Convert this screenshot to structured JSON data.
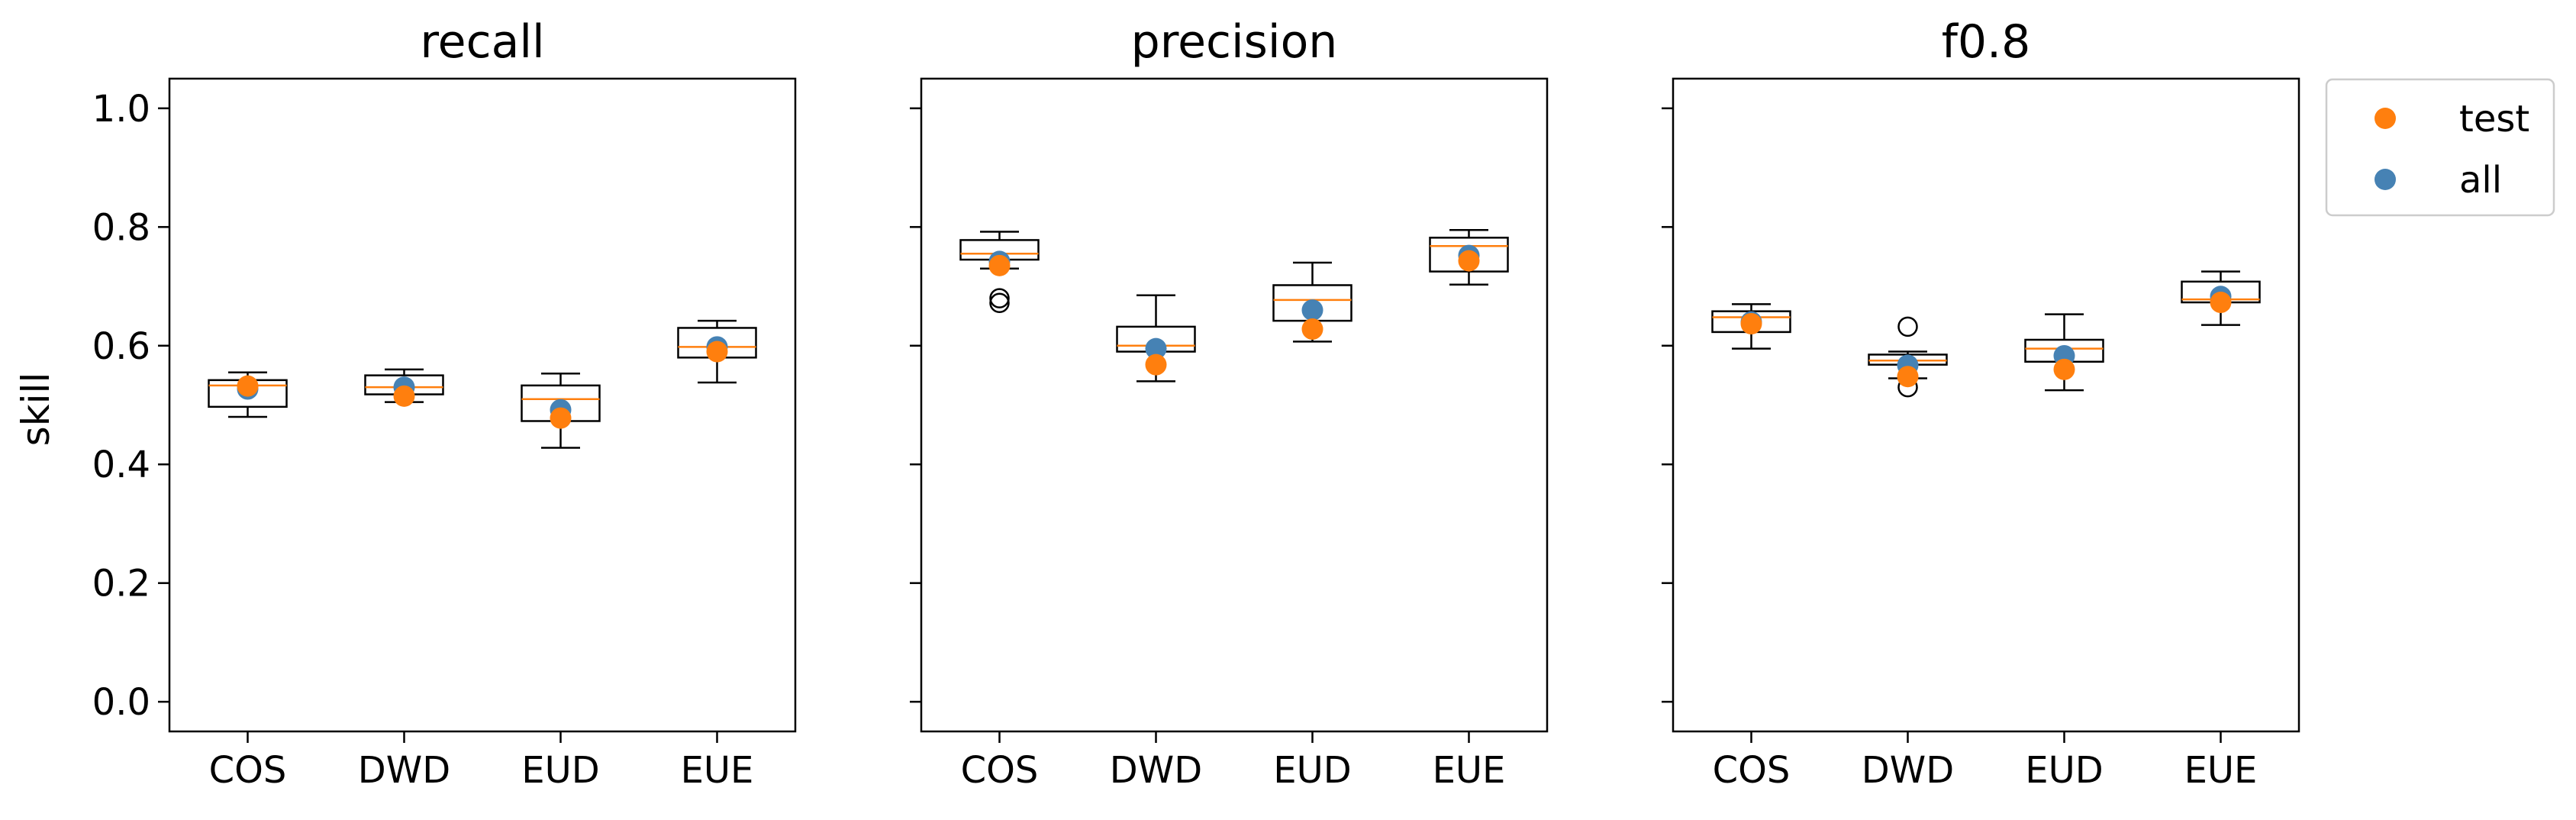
{
  "chart_data": {
    "type": "boxplot",
    "ylabel": "skill",
    "ylim": [
      -0.05,
      1.05
    ],
    "yticks": [
      0.0,
      0.2,
      0.4,
      0.6,
      0.8,
      1.0
    ],
    "ytick_labels": [
      "0.0",
      "0.2",
      "0.4",
      "0.6",
      "0.8",
      "1.0"
    ],
    "categories": [
      "COS",
      "DWD",
      "EUD",
      "EUE"
    ],
    "legend": {
      "placement": "outside-top-right",
      "entries": [
        {
          "label": "test",
          "color": "#ff7f0e"
        },
        {
          "label": "all",
          "color": "#4682b4"
        }
      ]
    },
    "colors": {
      "median": "#ff7f0e",
      "test": "#ff7f0e",
      "all": "#4682b4",
      "box": "#000000"
    },
    "panels": [
      {
        "title": "recall",
        "boxes": [
          {
            "category": "COS",
            "whislo": 0.48,
            "q1": 0.497,
            "med": 0.533,
            "q3": 0.542,
            "whishi": 0.555,
            "fliers": []
          },
          {
            "category": "DWD",
            "whislo": 0.505,
            "q1": 0.518,
            "med": 0.53,
            "q3": 0.55,
            "whishi": 0.56,
            "fliers": []
          },
          {
            "category": "EUD",
            "whislo": 0.428,
            "q1": 0.473,
            "med": 0.51,
            "q3": 0.533,
            "whishi": 0.553,
            "fliers": []
          },
          {
            "category": "EUE",
            "whislo": 0.538,
            "q1": 0.58,
            "med": 0.598,
            "q3": 0.63,
            "whishi": 0.642,
            "fliers": []
          }
        ],
        "all": [
          0.527,
          0.53,
          0.492,
          0.598
        ],
        "test": [
          0.532,
          0.515,
          0.478,
          0.59
        ]
      },
      {
        "title": "precision",
        "boxes": [
          {
            "category": "COS",
            "whislo": 0.73,
            "q1": 0.745,
            "med": 0.755,
            "q3": 0.778,
            "whishi": 0.792,
            "fliers": [
              0.672,
              0.68
            ]
          },
          {
            "category": "DWD",
            "whislo": 0.54,
            "q1": 0.59,
            "med": 0.6,
            "q3": 0.632,
            "whishi": 0.685,
            "fliers": []
          },
          {
            "category": "EUD",
            "whislo": 0.607,
            "q1": 0.642,
            "med": 0.677,
            "q3": 0.702,
            "whishi": 0.74,
            "fliers": []
          },
          {
            "category": "EUE",
            "whislo": 0.703,
            "q1": 0.725,
            "med": 0.768,
            "q3": 0.782,
            "whishi": 0.795,
            "fliers": []
          }
        ],
        "all": [
          0.742,
          0.595,
          0.66,
          0.752
        ],
        "test": [
          0.735,
          0.568,
          0.628,
          0.743
        ]
      },
      {
        "title": "f0.8",
        "boxes": [
          {
            "category": "COS",
            "whislo": 0.595,
            "q1": 0.623,
            "med": 0.648,
            "q3": 0.658,
            "whishi": 0.67,
            "fliers": []
          },
          {
            "category": "DWD",
            "whislo": 0.545,
            "q1": 0.568,
            "med": 0.575,
            "q3": 0.585,
            "whishi": 0.59,
            "fliers": [
              0.632,
              0.53
            ]
          },
          {
            "category": "EUD",
            "whislo": 0.525,
            "q1": 0.573,
            "med": 0.595,
            "q3": 0.61,
            "whishi": 0.653,
            "fliers": []
          },
          {
            "category": "EUE",
            "whislo": 0.635,
            "q1": 0.673,
            "med": 0.678,
            "q3": 0.708,
            "whishi": 0.725,
            "fliers": []
          }
        ],
        "all": [
          0.64,
          0.567,
          0.583,
          0.683
        ],
        "test": [
          0.637,
          0.548,
          0.56,
          0.673
        ]
      }
    ]
  }
}
